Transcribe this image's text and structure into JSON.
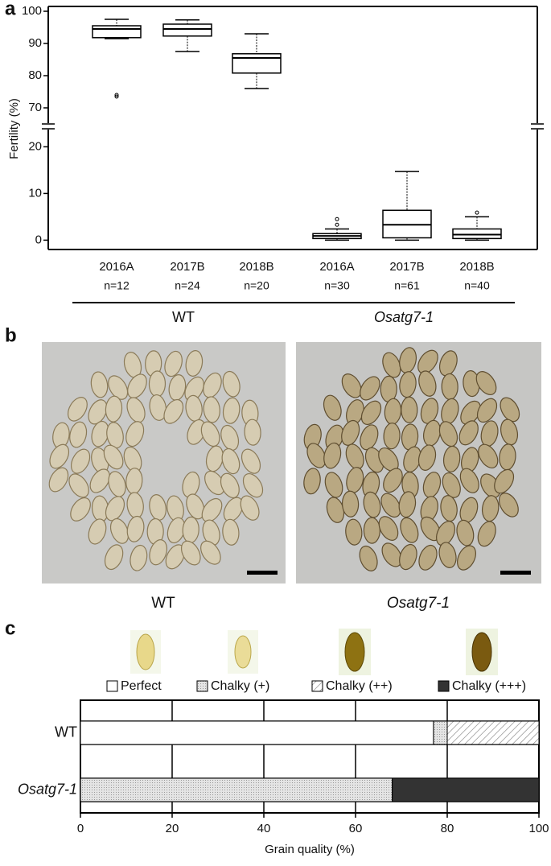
{
  "panel_labels": [
    "a",
    "b",
    "c"
  ],
  "chart_data": [
    {
      "type": "box",
      "ylabel": "Fertility (%)",
      "categories": [
        "2016A",
        "2017B",
        "2018B",
        "2016A",
        "2017B",
        "2018B"
      ],
      "n_labels": [
        "n=12",
        "n=24",
        "n=20",
        "n=30",
        "n=61",
        "n=40"
      ],
      "groups": [
        {
          "name": "WT",
          "size": 3,
          "style": "normal"
        },
        {
          "name": "Osatg7-1",
          "size": 3,
          "style": "italic"
        }
      ],
      "boxes": [
        {
          "min": 91.5,
          "q1": 91.8,
          "median": 94.5,
          "q3": 95.5,
          "max": 97.5,
          "outliers": [
            73.5,
            74
          ]
        },
        {
          "min": 87.5,
          "q1": 92.3,
          "median": 94.5,
          "q3": 96,
          "max": 97.3,
          "outliers": []
        },
        {
          "min": 76,
          "q1": 80.8,
          "median": 85.5,
          "q3": 86.8,
          "max": 93,
          "outliers": []
        },
        {
          "min": 0,
          "q1": 0.35,
          "median": 0.9,
          "q3": 1.4,
          "max": 2.4,
          "outliers": [
            3.3,
            4.5
          ]
        },
        {
          "min": 0,
          "q1": 0.5,
          "median": 3.3,
          "q3": 6.4,
          "max": 14.7,
          "outliers": []
        },
        {
          "min": 0,
          "q1": 0.35,
          "median": 1.2,
          "q3": 2.4,
          "max": 5.0,
          "outliers": [
            5.9
          ]
        }
      ],
      "ylim": [
        [
          -2,
          23
        ],
        [
          66,
          101.5
        ]
      ],
      "yticks": [
        0,
        10,
        20,
        70,
        80,
        90,
        100
      ],
      "axis_break": true
    },
    {
      "type": "stacked-barh",
      "xlabel": "Grain quality (%)",
      "categories": [
        "WT",
        "Osatg7-1"
      ],
      "category_style": [
        "normal",
        "italic"
      ],
      "series": [
        {
          "name": "Perfect",
          "color": "#ffffff",
          "pattern": "none",
          "values": [
            77,
            0
          ]
        },
        {
          "name": "Chalky (+)",
          "color": "#dddddd",
          "pattern": "dots",
          "values": [
            3,
            68
          ]
        },
        {
          "name": "Chalky (++)",
          "color": "#ffffff",
          "pattern": "hatch",
          "values": [
            20,
            0
          ]
        },
        {
          "name": "Chalky (+++)",
          "color": "#333333",
          "pattern": "none",
          "values": [
            0,
            32
          ]
        }
      ],
      "xlim": [
        0,
        100
      ],
      "xticks": [
        0,
        20,
        40,
        60,
        80,
        100
      ],
      "grid": true
    }
  ],
  "photos": {
    "labels": [
      "WT",
      "Osatg7-1"
    ],
    "label_style": [
      "normal",
      "italic"
    ]
  }
}
